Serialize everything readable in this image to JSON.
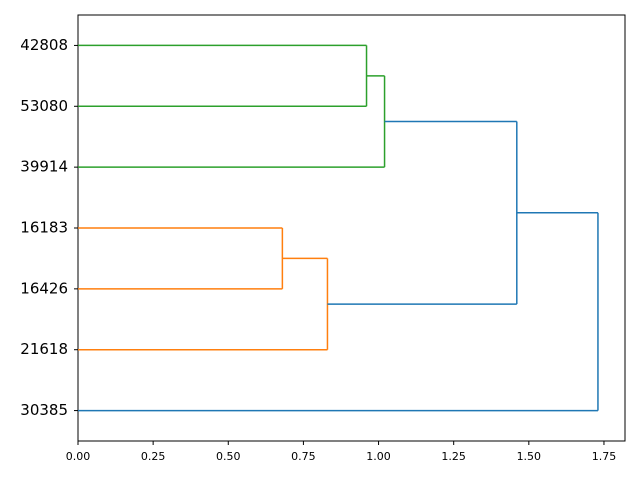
{
  "chart_data": {
    "type": "dendrogram",
    "orientation": "horizontal",
    "xlim": [
      0,
      1.82
    ],
    "xticks": [
      {
        "value": 0,
        "label": "0.00"
      },
      {
        "value": 0.25,
        "label": "0.25"
      },
      {
        "value": 0.5,
        "label": "0.50"
      },
      {
        "value": 0.75,
        "label": "0.75"
      },
      {
        "value": 1,
        "label": "1.00"
      },
      {
        "value": 1.25,
        "label": "1.25"
      },
      {
        "value": 1.5,
        "label": "1.50"
      },
      {
        "value": 1.75,
        "label": "1.75"
      }
    ],
    "tree": {
      "height": 1.73,
      "color": "#1f77b4",
      "children": [
        {
          "height": 1.46,
          "color": "#1f77b4",
          "children": [
            {
              "height": 1.02,
              "color": "#2ca02c",
              "children": [
                {
                  "height": 0.96,
                  "color": "#2ca02c",
                  "children": [
                    {
                      "label": "42808"
                    },
                    {
                      "label": "53080"
                    }
                  ]
                },
                {
                  "label": "39914"
                }
              ]
            },
            {
              "height": 0.83,
              "color": "#ff7f0e",
              "children": [
                {
                  "height": 0.68,
                  "color": "#ff7f0e",
                  "children": [
                    {
                      "label": "16183"
                    },
                    {
                      "label": "16426"
                    }
                  ]
                },
                {
                  "label": "21618"
                }
              ]
            }
          ]
        },
        {
          "label": "30385"
        }
      ]
    }
  }
}
